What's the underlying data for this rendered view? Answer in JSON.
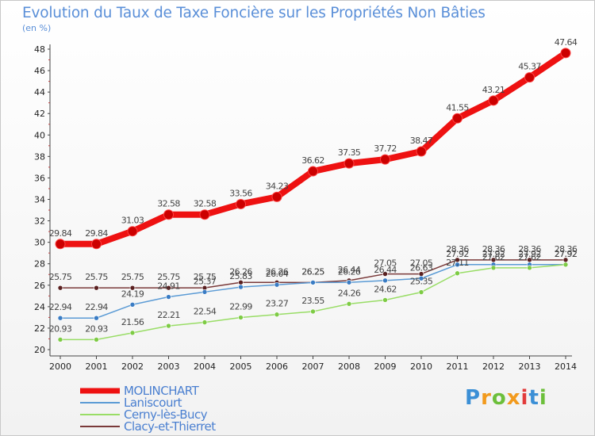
{
  "title": "Evolution du Taux de Taxe Foncière sur les Propriétés Non Bâties",
  "unit_label": "(en %)",
  "brand": {
    "letters": [
      "P",
      "r",
      "o",
      "x",
      "i",
      "t",
      "i"
    ],
    "colors": [
      "#3b8fd6",
      "#f29a1d",
      "#6cbf3b",
      "#f29a1d",
      "#e23b3b",
      "#3b8fd6",
      "#6cbf3b"
    ]
  },
  "chart_data": {
    "type": "line",
    "title": "Evolution du Taux de Taxe Foncière sur les Propriétés Non Bâties",
    "ylabel": "(en %)",
    "categories": [
      "2000",
      "2001",
      "2002",
      "2003",
      "2004",
      "2005",
      "2006",
      "2007",
      "2008",
      "2009",
      "2010",
      "2011",
      "2012",
      "2013",
      "2014"
    ],
    "ylim": [
      20,
      48
    ],
    "yticks": [
      20,
      22,
      24,
      26,
      28,
      30,
      32,
      34,
      36,
      38,
      40,
      42,
      44,
      46,
      48
    ],
    "grid": false,
    "legend": "bottom-left",
    "series": [
      {
        "name": "MOLINCHART",
        "color": "#ee1111",
        "marker": "#cc0000",
        "values": [
          29.84,
          29.84,
          31.03,
          32.58,
          32.58,
          33.56,
          34.23,
          36.62,
          37.35,
          37.72,
          38.47,
          41.55,
          43.21,
          45.37,
          47.64
        ],
        "labels": [
          "29.84",
          "29.84",
          "31.03",
          "32.58",
          "32.58",
          "33.56",
          "34.23",
          "36.62",
          "37.35",
          "37.72",
          "38.47",
          "41.55",
          "43.21",
          "45.37",
          "47.64"
        ]
      },
      {
        "name": "Laniscourt",
        "color": "#5b9bd5",
        "marker": "#3a7cc4",
        "values": [
          22.94,
          22.94,
          24.19,
          24.91,
          25.37,
          25.83,
          26.04,
          26.25,
          26.26,
          26.44,
          26.63,
          27.92,
          27.92,
          27.92,
          27.92
        ],
        "labels": [
          "22.94",
          "22.94",
          "24.19",
          "24.91",
          "25.37",
          "25.83",
          "26.04",
          "26.25",
          "26.26",
          "26.44",
          "26.63",
          "27.92",
          "27.92",
          "27.92",
          "27.92"
        ]
      },
      {
        "name": "Cerny-lès-Bucy",
        "color": "#99dd66",
        "marker": "#7ecb45",
        "values": [
          20.93,
          20.93,
          21.56,
          22.21,
          22.54,
          22.99,
          23.27,
          23.55,
          24.26,
          24.62,
          25.35,
          27.11,
          27.62,
          27.62,
          27.92
        ],
        "labels": [
          "20.93",
          "20.93",
          "21.56",
          "22.21",
          "22.54",
          "22.99",
          "23.27",
          "23.55",
          "24.26",
          "24.62",
          "25.35",
          "27.11",
          "27.62",
          "27.62",
          "27.92"
        ]
      },
      {
        "name": "Clacy-et-Thierret",
        "color": "#7a3a3a",
        "marker": "#5a2020",
        "values": [
          25.75,
          25.75,
          25.75,
          25.75,
          25.75,
          26.26,
          26.26,
          26.25,
          26.44,
          27.05,
          27.05,
          28.36,
          28.36,
          28.36,
          28.36
        ],
        "labels": [
          "25.75",
          "25.75",
          "25.75",
          "25.75",
          "25.75",
          "26.26",
          "26.26",
          "26.25",
          "26.44",
          "27.05",
          "27.05",
          "28.36",
          "28.36",
          "28.36",
          "28.36"
        ]
      }
    ]
  }
}
